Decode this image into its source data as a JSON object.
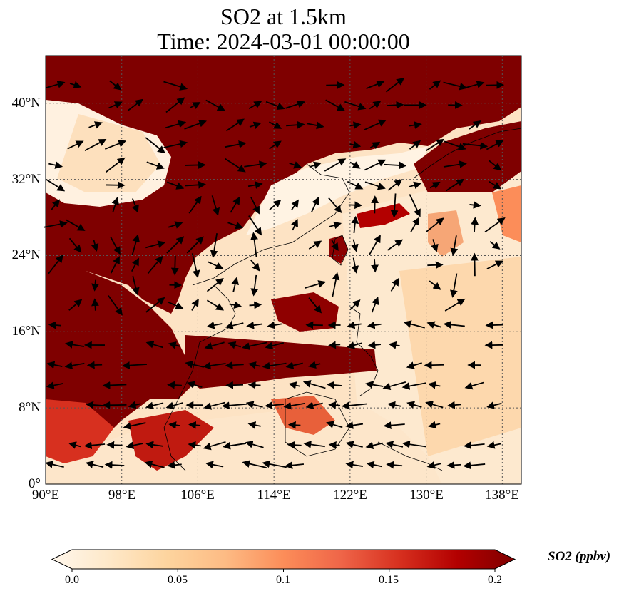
{
  "title_line1": "SO2 at 1.5km",
  "title_line2": "Time: 2024-03-01 00:00:00",
  "map": {
    "lon_range": [
      90,
      140
    ],
    "lat_range": [
      0,
      45
    ],
    "lon_ticks": [
      "90°E",
      "98°E",
      "106°E",
      "114°E",
      "122°E",
      "130°E",
      "138°E"
    ],
    "lon_values": [
      90,
      98,
      106,
      114,
      122,
      130,
      138
    ],
    "lat_ticks": [
      "0°",
      "8°N",
      "16°N",
      "24°N",
      "32°N",
      "40°N"
    ],
    "lat_values": [
      0,
      8,
      16,
      24,
      32,
      40
    ],
    "gridlines": "dotted",
    "field_colors": {
      "high": "#7f0000",
      "mid": "#d7301f",
      "low": "#fdd49e",
      "zero": "#fff7ec"
    }
  },
  "colorbar": {
    "label": "SO2 (ppbv)",
    "min": 0.0,
    "max": 0.2,
    "extend": "both",
    "ticks": [
      "0.0",
      "0.05",
      "0.1",
      "0.15",
      "0.2"
    ],
    "tick_values": [
      0.0,
      0.05,
      0.1,
      0.15,
      0.2
    ],
    "colormap": [
      "#fff7ec",
      "#fee8c8",
      "#fdd49e",
      "#fdbb84",
      "#fc8d59",
      "#ef6548",
      "#d7301f",
      "#b30000",
      "#7f0000"
    ]
  }
}
